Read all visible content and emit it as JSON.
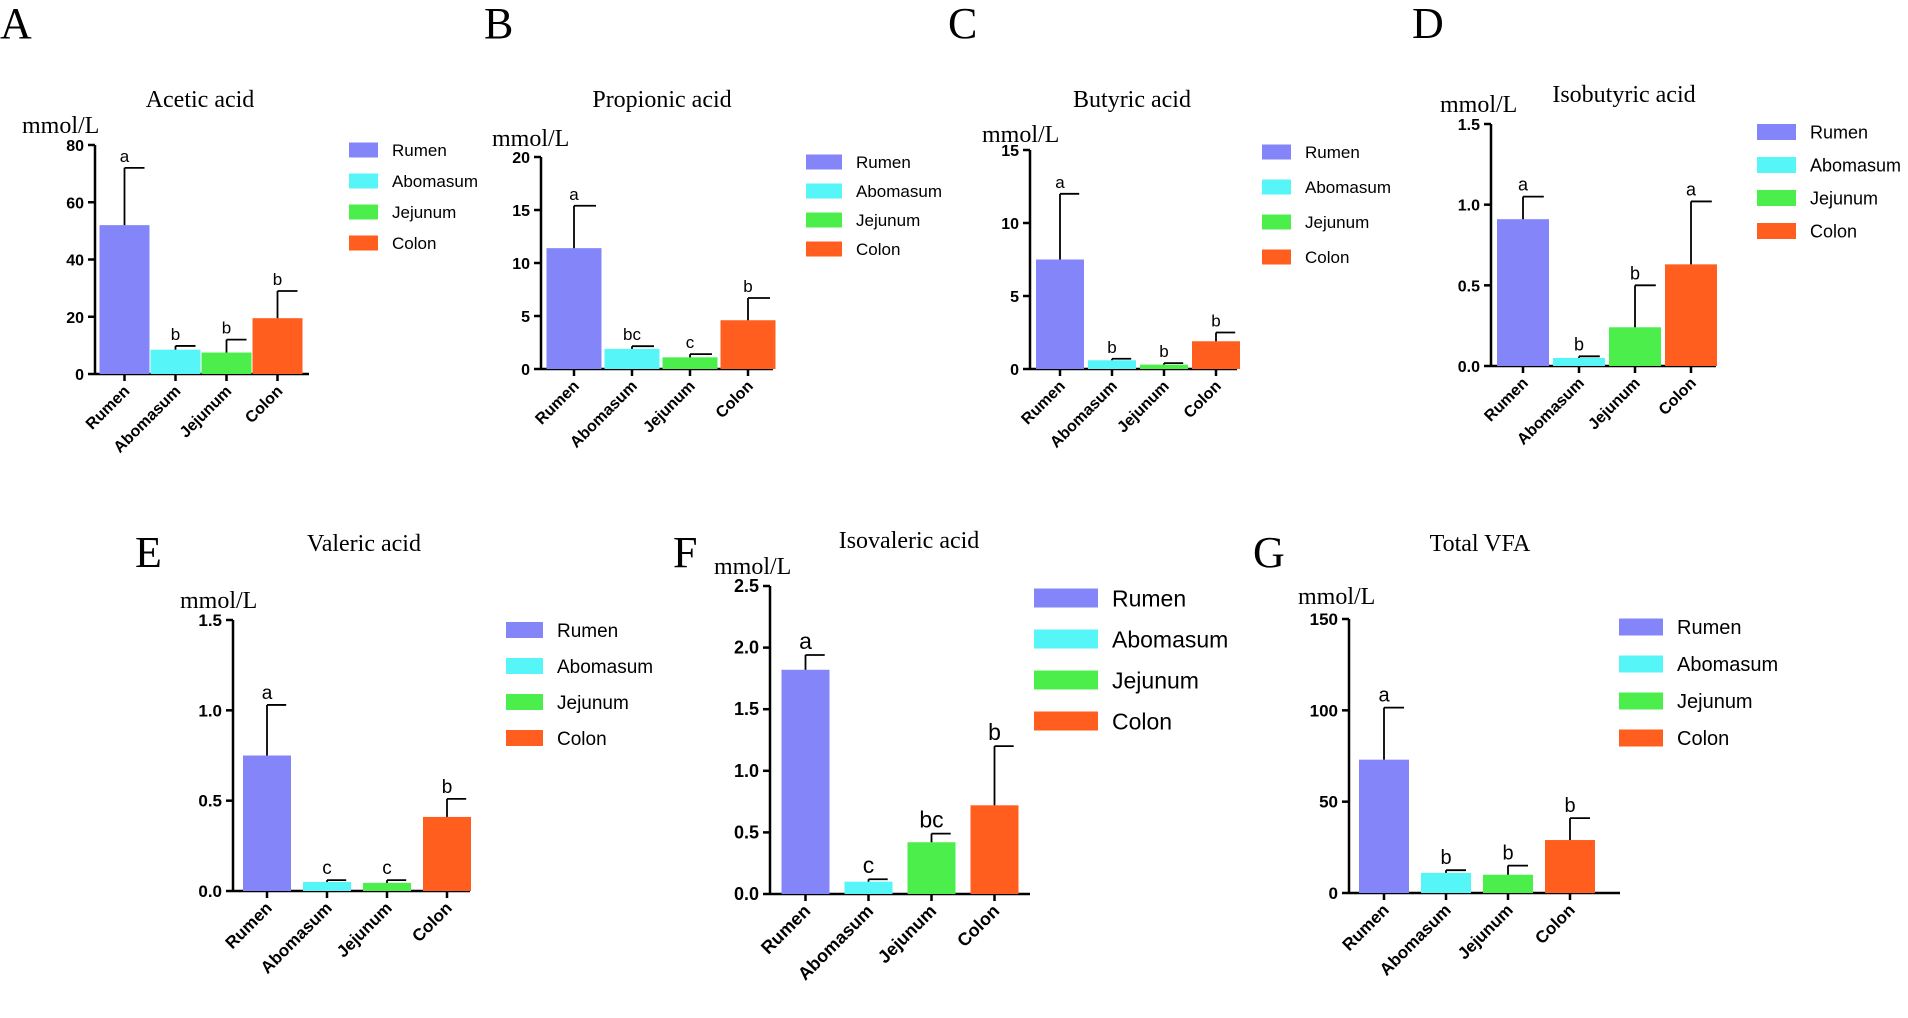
{
  "colors": {
    "Rumen": "#8585fa",
    "Abomasum": "#55f5f8",
    "Jejunum": "#4cee4c",
    "Colon": "#ff5e1e"
  },
  "chart_data": [
    {
      "panel": "A",
      "type": "bar",
      "title": "Acetic acid",
      "ylabel": "mmol/L",
      "categories": [
        "Rumen",
        "Abomasum",
        "Jejunum",
        "Colon"
      ],
      "values": [
        52,
        8.5,
        7.5,
        19.5
      ],
      "errors": [
        20,
        1.3,
        4.5,
        9.5
      ],
      "letters": [
        "a",
        "b",
        "b",
        "b"
      ],
      "ylim": [
        0,
        80
      ],
      "yticks": [
        "0",
        "20",
        "40",
        "60",
        "80"
      ],
      "legend": [
        "Rumen",
        "Abomasum",
        "Jejunum",
        "Colon"
      ]
    },
    {
      "panel": "B",
      "type": "bar",
      "title": "Propionic acid",
      "ylabel": "mmol/L",
      "categories": [
        "Rumen",
        "Abomasum",
        "Jejunum",
        "Colon"
      ],
      "values": [
        11.4,
        1.9,
        1.1,
        4.6
      ],
      "errors": [
        4.0,
        0.25,
        0.3,
        2.1
      ],
      "letters": [
        "a",
        "bc",
        "c",
        "b"
      ],
      "ylim": [
        0,
        20
      ],
      "yticks": [
        "0",
        "5",
        "10",
        "15",
        "20"
      ],
      "legend": [
        "Rumen",
        "Abomasum",
        "Jejunum",
        "Colon"
      ]
    },
    {
      "panel": "C",
      "type": "bar",
      "title": "Butyric acid",
      "ylabel": "mmol/L",
      "categories": [
        "Rumen",
        "Abomasum",
        "Jejunum",
        "Colon"
      ],
      "values": [
        7.5,
        0.6,
        0.3,
        1.9
      ],
      "errors": [
        4.5,
        0.1,
        0.1,
        0.6
      ],
      "letters": [
        "a",
        "b",
        "b",
        "b"
      ],
      "ylim": [
        0,
        15
      ],
      "yticks": [
        "0",
        "5",
        "10",
        "15"
      ],
      "legend": [
        "Rumen",
        "Abomasum",
        "Jejunum",
        "Colon"
      ]
    },
    {
      "panel": "D",
      "type": "bar",
      "title": "Isobutyric acid",
      "ylabel": "mmol/L",
      "categories": [
        "Rumen",
        "Abomasum",
        "Jejunum",
        "Colon"
      ],
      "values": [
        0.91,
        0.05,
        0.24,
        0.63
      ],
      "errors": [
        0.14,
        0.01,
        0.26,
        0.39
      ],
      "letters": [
        "a",
        "b",
        "b",
        "a"
      ],
      "ylim": [
        0,
        1.5
      ],
      "yticks": [
        "0.0",
        "0.5",
        "1.0",
        "1.5"
      ],
      "legend": [
        "Rumen",
        "Abomasum",
        "Jejunum",
        "Colon"
      ]
    },
    {
      "panel": "E",
      "type": "bar",
      "title": "Valeric acid",
      "ylabel": "mmol/L",
      "categories": [
        "Rumen",
        "Abomasum",
        "Jejunum",
        "Colon"
      ],
      "values": [
        0.75,
        0.05,
        0.045,
        0.41
      ],
      "errors": [
        0.28,
        0.01,
        0.015,
        0.1
      ],
      "letters": [
        "a",
        "c",
        "c",
        "b"
      ],
      "ylim": [
        0,
        1.5
      ],
      "yticks": [
        "0.0",
        "0.5",
        "1.0",
        "1.5"
      ],
      "legend": [
        "Rumen",
        "Abomasum",
        "Jejunum",
        "Colon"
      ]
    },
    {
      "panel": "F",
      "type": "bar",
      "title": "Isovaleric acid",
      "ylabel": "mmol/L",
      "categories": [
        "Rumen",
        "Abomasum",
        "Jejunum",
        "Colon"
      ],
      "values": [
        1.82,
        0.1,
        0.42,
        0.72
      ],
      "errors": [
        0.12,
        0.02,
        0.07,
        0.48
      ],
      "letters": [
        "a",
        "c",
        "bc",
        "b"
      ],
      "ylim": [
        0,
        2.5
      ],
      "yticks": [
        "0.0",
        "0.5",
        "1.0",
        "1.5",
        "2.0",
        "2.5"
      ],
      "legend": [
        "Rumen",
        "Abomasum",
        "Jejunum",
        "Colon"
      ]
    },
    {
      "panel": "G",
      "type": "bar",
      "title": "Total VFA",
      "ylabel": "mmol/L",
      "categories": [
        "Rumen",
        "Abomasum",
        "Jejunum",
        "Colon"
      ],
      "values": [
        73,
        11,
        10,
        29
      ],
      "errors": [
        28.5,
        1.5,
        5,
        12
      ],
      "letters": [
        "a",
        "b",
        "b",
        "b"
      ],
      "ylim": [
        0,
        150
      ],
      "yticks": [
        "0",
        "50",
        "100",
        "150"
      ],
      "legend": [
        "Rumen",
        "Abomasum",
        "Jejunum",
        "Colon"
      ]
    }
  ]
}
